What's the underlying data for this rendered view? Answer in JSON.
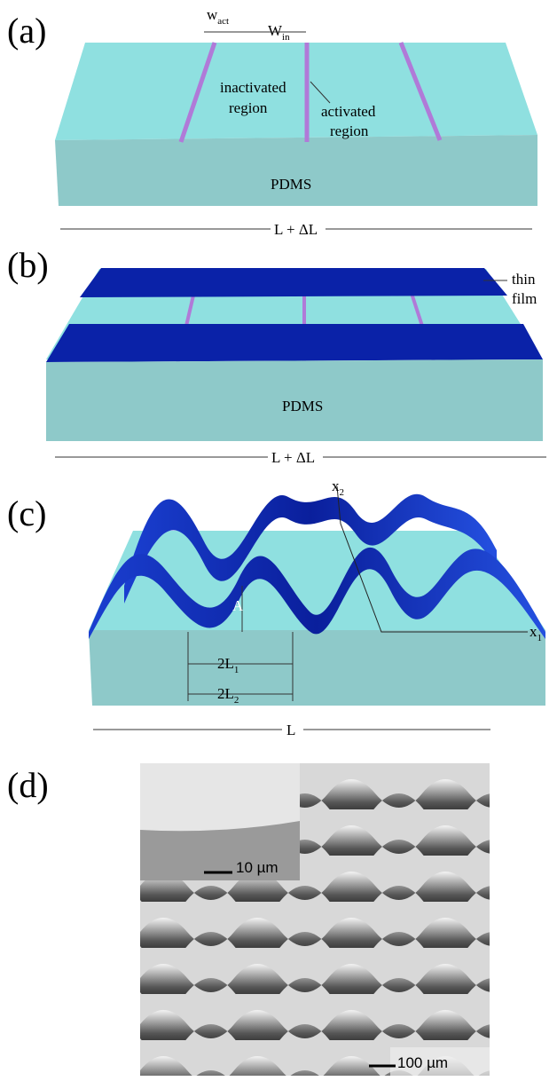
{
  "panel_a": {
    "label": "(a)",
    "w_act": {
      "base": "w",
      "sub": "act"
    },
    "w_in": {
      "base": "W",
      "sub": "in"
    },
    "inactivated_region": [
      "inactivated",
      "region"
    ],
    "activated_region": [
      "activated",
      "region"
    ],
    "substrate": "PDMS",
    "length": "L + ΔL"
  },
  "panel_b": {
    "label": "(b)",
    "thin_film": [
      "thin",
      "film"
    ],
    "substrate": "PDMS",
    "length": "L + ΔL"
  },
  "panel_c": {
    "label": "(c)",
    "x2": {
      "base": "x",
      "sub": "2"
    },
    "x1": {
      "base": "x",
      "sub": "1"
    },
    "amplitude": "A",
    "two_l1": {
      "base": "2L",
      "sub": "1"
    },
    "two_l2": {
      "base": "2L",
      "sub": "2"
    },
    "length": "L"
  },
  "panel_d": {
    "label": "(d)",
    "inset_scale": "10 µm",
    "scale": "100 µm"
  }
}
